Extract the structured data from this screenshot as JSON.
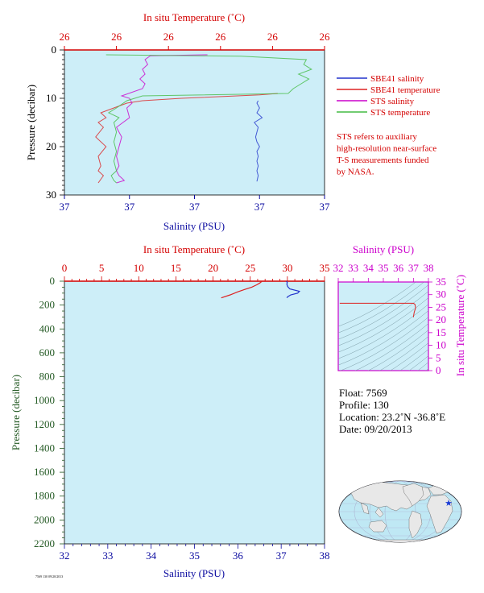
{
  "chart_data": [
    {
      "type": "line",
      "title": "",
      "top_axis": {
        "label": "In situ Temperature (˚C)",
        "ticks": [
          "26",
          "26",
          "26",
          "26",
          "26",
          "26"
        ]
      },
      "bottom_axis": {
        "label": "Salinity (PSU)",
        "ticks": [
          "37",
          "37",
          "37",
          "37",
          "37"
        ]
      },
      "left_axis": {
        "label": "Pressure (decibar)",
        "ticks": [
          "0",
          "10",
          "20",
          "30"
        ],
        "ylim": [
          0,
          30
        ],
        "inverted": true
      },
      "background": "#cdeef8",
      "series": [
        {
          "name": "SBE41 salinity",
          "color": "#2233cc",
          "xlim": [
            0,
            1
          ],
          "x": [
            0.745,
            0.74,
            0.75,
            0.74,
            0.76,
            0.73,
            0.745,
            0.74,
            0.735,
            0.74,
            0.75,
            0.74,
            0.745,
            0.74,
            0.745,
            0.74,
            0.745,
            0.74
          ],
          "y": [
            10.5,
            11,
            12,
            13,
            14,
            15,
            16,
            17,
            18,
            19,
            20,
            21,
            22,
            23,
            24,
            25,
            26,
            27.2
          ]
        },
        {
          "name": "SBE41 temperature",
          "color": "#dd2222",
          "xlim": [
            0,
            1
          ],
          "x": [
            0.82,
            0.75,
            0.62,
            0.45,
            0.3,
            0.24,
            0.19,
            0.14,
            0.16,
            0.13,
            0.15,
            0.12,
            0.16,
            0.13,
            0.14,
            0.13,
            0.15,
            0.13
          ],
          "y": [
            9,
            9.3,
            9.6,
            10,
            10.5,
            11,
            12,
            13,
            14,
            15,
            16,
            18,
            20,
            22,
            24,
            25,
            26,
            27.5
          ]
        },
        {
          "name": "STS salinity",
          "color": "#cc00cc",
          "xlim": [
            0,
            1
          ],
          "x": [
            0.55,
            0.33,
            0.31,
            0.32,
            0.3,
            0.31,
            0.29,
            0.31,
            0.3,
            0.22,
            0.25,
            0.26,
            0.24,
            0.25,
            0.2,
            0.22,
            0.21,
            0.2,
            0.21,
            0.2,
            0.21,
            0.22,
            0.23,
            0.2
          ],
          "y": [
            1,
            1.2,
            2,
            3,
            4,
            5,
            6,
            7,
            8,
            9.5,
            10,
            11,
            12,
            14,
            16,
            18,
            20,
            22,
            24,
            25,
            26,
            26.5,
            27,
            27.5
          ]
        },
        {
          "name": "STS temperature",
          "color": "#44bb44",
          "xlim": [
            0,
            1
          ],
          "x": [
            0.16,
            0.68,
            0.93,
            0.92,
            0.95,
            0.9,
            0.94,
            0.91,
            0.88,
            0.86,
            0.3,
            0.24,
            0.2,
            0.17,
            0.21,
            0.19,
            0.2,
            0.19,
            0.2,
            0.19,
            0.2,
            0.18,
            0.19,
            0.2
          ],
          "y": [
            1,
            1.3,
            2,
            3,
            4,
            5,
            6,
            7,
            8,
            9,
            9.5,
            10.5,
            12,
            13,
            14,
            15,
            17,
            19,
            21,
            23,
            25,
            26,
            27,
            27.5
          ]
        }
      ]
    },
    {
      "type": "line",
      "title": "",
      "top_axis": {
        "label": "In situ Temperature (˚C)",
        "ticks": [
          "0",
          "5",
          "10",
          "15",
          "20",
          "25",
          "30",
          "35"
        ],
        "xlim": [
          0,
          35
        ]
      },
      "bottom_axis": {
        "label": "Salinity (PSU)",
        "ticks": [
          "32",
          "33",
          "34",
          "35",
          "36",
          "37",
          "38"
        ],
        "xlim": [
          32,
          38
        ]
      },
      "left_axis": {
        "label": "Pressure (decibar)",
        "ticks": [
          "0",
          "200",
          "400",
          "600",
          "800",
          "1000",
          "1200",
          "1400",
          "1600",
          "1800",
          "2000",
          "2200"
        ],
        "ylim": [
          0,
          2200
        ],
        "inverted": true
      },
      "background": "#cdeef8",
      "series": [
        {
          "name": "Temperature",
          "color": "#dd2222",
          "axis": "top",
          "x": [
            26.6,
            26.5,
            26.3,
            25.9,
            25.2,
            24.2,
            23.3,
            22.3,
            21.1
          ],
          "y": [
            0,
            5,
            15,
            30,
            50,
            70,
            90,
            115,
            140
          ]
        },
        {
          "name": "Salinity",
          "color": "#2233cc",
          "axis": "bottom",
          "x": [
            37.12,
            37.14,
            37.13,
            37.15,
            37.2,
            37.42,
            37.38,
            37.22,
            37.15,
            37.13
          ],
          "y": [
            0,
            10,
            25,
            45,
            65,
            85,
            100,
            115,
            130,
            140
          ]
        }
      ]
    },
    {
      "type": "line",
      "title": "",
      "top_axis": {
        "label": "Salinity (PSU)",
        "ticks": [
          "32",
          "33",
          "34",
          "35",
          "36",
          "37",
          "38"
        ],
        "xlim": [
          32,
          38
        ]
      },
      "right_axis": {
        "label": "In situ Temperature (˚C)",
        "ticks": [
          "0",
          "5",
          "10",
          "15",
          "20",
          "25",
          "30",
          "35"
        ],
        "ylim": [
          0,
          35
        ]
      },
      "background": "#cdeef8",
      "series": [
        {
          "name": "T-S",
          "color": "#dd2222",
          "x": [
            32.1,
            33.0,
            34.0,
            35.0,
            36.0,
            37.0,
            37.1,
            37.15,
            37.05,
            37.0
          ],
          "y": [
            26.6,
            26.6,
            26.6,
            26.6,
            26.6,
            26.6,
            26.2,
            24.8,
            23.0,
            21.1
          ]
        }
      ]
    }
  ],
  "legend": {
    "items": [
      {
        "label": "SBE41 salinity",
        "color": "#2233cc"
      },
      {
        "label": "SBE41 temperature",
        "color": "#dd2222"
      },
      {
        "label": "STS salinity",
        "color": "#cc00cc"
      },
      {
        "label": "STS temperature",
        "color": "#44bb44"
      }
    ],
    "note_lines": [
      "STS refers to auxiliary",
      "high-resolution near-surface",
      "T-S measurements funded",
      "by NASA."
    ]
  },
  "info": {
    "float": "Float:  7569",
    "profile": "Profile:  130",
    "location": "Location:  23.2˚N  -36.8˚E",
    "date": "Date:  09/20/2013"
  },
  "footer": {
    "stamp": "7569 130 09/20/2013"
  },
  "map": {
    "marker_label": "★",
    "land_color": "#e8e8e8",
    "ocean_color": "#bfe8f4",
    "marker_color": "#1a3cd6"
  }
}
